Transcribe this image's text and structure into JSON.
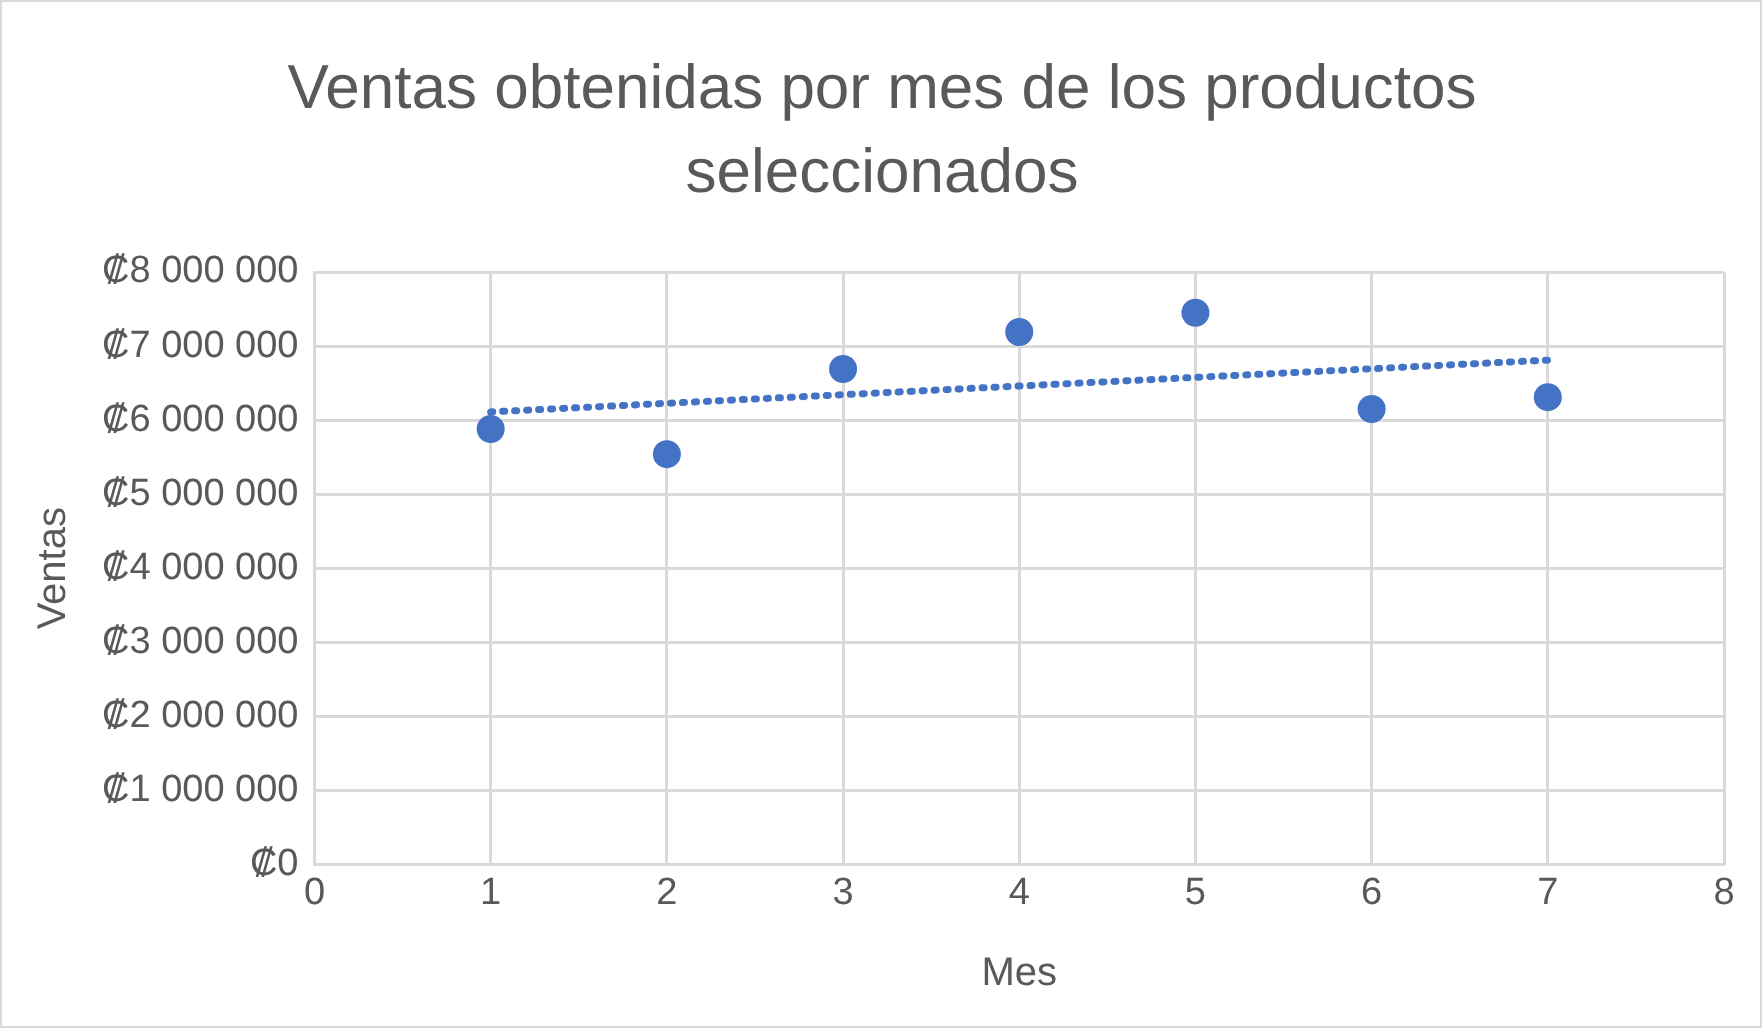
{
  "chart_data": {
    "type": "scatter",
    "title": "Ventas obtenidas por mes de los productos seleccionados",
    "xlabel": "Mes",
    "ylabel": "Ventas",
    "series": [
      {
        "color": "#4472c4",
        "x": [
          1,
          2,
          3,
          4,
          5,
          6,
          7
        ],
        "values": [
          5880000,
          5540000,
          6690000,
          7190000,
          7450000,
          6150000,
          6310000
        ],
        "marker": "circle"
      },
      {
        "type": "line",
        "color": "#4472c4",
        "x": [
          1,
          7
        ],
        "values": [
          6110000,
          6810000
        ],
        "line_style": "dotted",
        "marker": "none"
      }
    ],
    "xlim": [
      0,
      8
    ],
    "xticks": [
      0,
      1,
      2,
      3,
      4,
      5,
      6,
      7,
      8
    ],
    "ylim": [
      0,
      8000000
    ],
    "yticks": [
      {
        "value": 0,
        "label": "₡0"
      },
      {
        "value": 1000000,
        "label": "₡1 000 000"
      },
      {
        "value": 2000000,
        "label": "₡2 000 000"
      },
      {
        "value": 3000000,
        "label": "₡3 000 000"
      },
      {
        "value": 4000000,
        "label": "₡4 000 000"
      },
      {
        "value": 5000000,
        "label": "₡5 000 000"
      },
      {
        "value": 6000000,
        "label": "₡6 000 000"
      },
      {
        "value": 7000000,
        "label": "₡7 000 000"
      },
      {
        "value": 8000000,
        "label": "₡8 000 000"
      }
    ],
    "grid": true,
    "legend": false
  }
}
